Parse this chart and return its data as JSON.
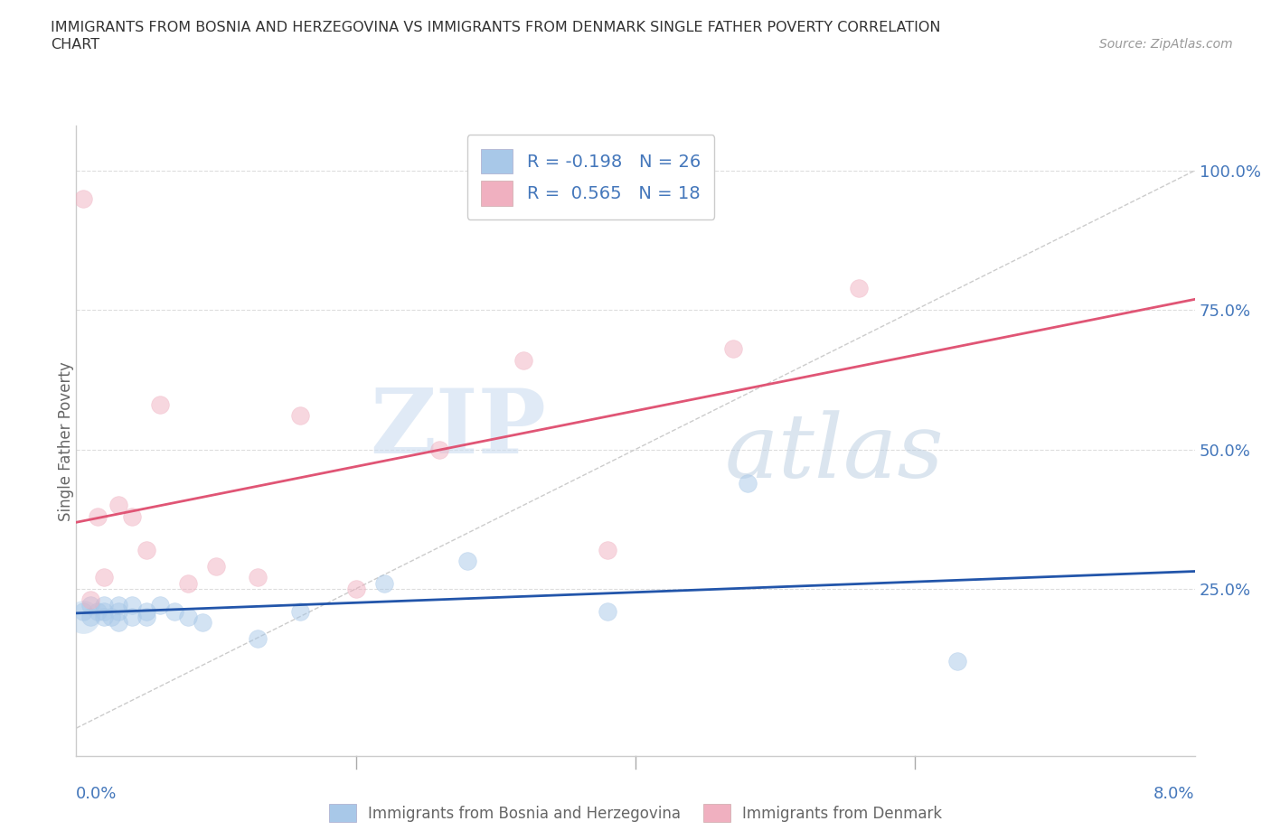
{
  "title_line1": "IMMIGRANTS FROM BOSNIA AND HERZEGOVINA VS IMMIGRANTS FROM DENMARK SINGLE FATHER POVERTY CORRELATION",
  "title_line2": "CHART",
  "source": "Source: ZipAtlas.com",
  "ylabel": "Single Father Poverty",
  "xlim": [
    0.0,
    0.08
  ],
  "ylim": [
    -0.05,
    1.08
  ],
  "watermark_zip": "ZIP",
  "watermark_atlas": "atlas",
  "legend_R1": "R = -0.198",
  "legend_N1": "N = 26",
  "legend_R2": "R =  0.565",
  "legend_N2": "N = 18",
  "blue_scatter_color": "#a8c8e8",
  "pink_scatter_color": "#f0b0c0",
  "blue_line_color": "#2255aa",
  "pink_line_color": "#e05575",
  "diagonal_color": "#cccccc",
  "grid_color": "#dddddd",
  "axis_label_color": "#4477bb",
  "text_color": "#333333",
  "source_color": "#999999",
  "ylabel_color": "#666666",
  "bosnia_x": [
    0.0005,
    0.001,
    0.001,
    0.0015,
    0.002,
    0.002,
    0.002,
    0.0025,
    0.003,
    0.003,
    0.003,
    0.004,
    0.004,
    0.005,
    0.005,
    0.006,
    0.007,
    0.008,
    0.009,
    0.013,
    0.016,
    0.022,
    0.028,
    0.038,
    0.048,
    0.063
  ],
  "bosnia_y": [
    0.21,
    0.2,
    0.22,
    0.21,
    0.2,
    0.21,
    0.22,
    0.2,
    0.19,
    0.21,
    0.22,
    0.2,
    0.22,
    0.21,
    0.2,
    0.22,
    0.21,
    0.2,
    0.19,
    0.16,
    0.21,
    0.26,
    0.3,
    0.21,
    0.44,
    0.12
  ],
  "denmark_x": [
    0.0005,
    0.001,
    0.0015,
    0.002,
    0.003,
    0.004,
    0.005,
    0.006,
    0.008,
    0.01,
    0.013,
    0.016,
    0.02,
    0.026,
    0.032,
    0.038,
    0.047,
    0.056
  ],
  "denmark_y": [
    0.95,
    0.23,
    0.38,
    0.27,
    0.4,
    0.38,
    0.32,
    0.58,
    0.26,
    0.29,
    0.27,
    0.56,
    0.25,
    0.5,
    0.66,
    0.32,
    0.68,
    0.79
  ],
  "bosnia_size_base": 200,
  "denmark_size_base": 200,
  "scatter_alpha": 0.5
}
